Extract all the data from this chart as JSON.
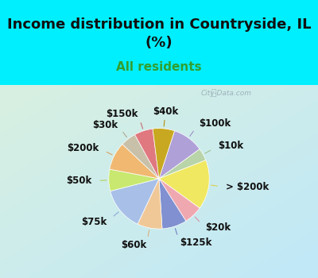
{
  "title": "Income distribution in Countryside, IL\n(%)",
  "subtitle": "All residents",
  "labels": [
    "$100k",
    "$10k",
    "> $200k",
    "$20k",
    "$125k",
    "$60k",
    "$75k",
    "$50k",
    "$200k",
    "$30k",
    "$150k",
    "$40k"
  ],
  "sizes": [
    10,
    4,
    16,
    6,
    8,
    8,
    14,
    7,
    9,
    5,
    6,
    7
  ],
  "colors": [
    "#b0a0d8",
    "#b8d4a8",
    "#f0e860",
    "#f0a8b0",
    "#8090d0",
    "#f0c898",
    "#a8c0e8",
    "#c8e870",
    "#f0b870",
    "#c8c0a8",
    "#e07880",
    "#c8a820"
  ],
  "line_colors": [
    "#a090c8",
    "#a0c090",
    "#d8d050",
    "#d890a0",
    "#7080c0",
    "#d8b080",
    "#90a8d8",
    "#b0d060",
    "#d8a060",
    "#b0a890",
    "#c86870",
    "#b09010"
  ],
  "bg_top": "#00efff",
  "bg_chart_tl": "#d8f0e0",
  "bg_chart_br": "#c0e8f8",
  "title_color": "#101010",
  "subtitle_color": "#30a030",
  "watermark": "City-Data.com",
  "startangle": 72,
  "label_fontsize": 8.5,
  "title_fontsize": 13,
  "subtitle_fontsize": 11
}
